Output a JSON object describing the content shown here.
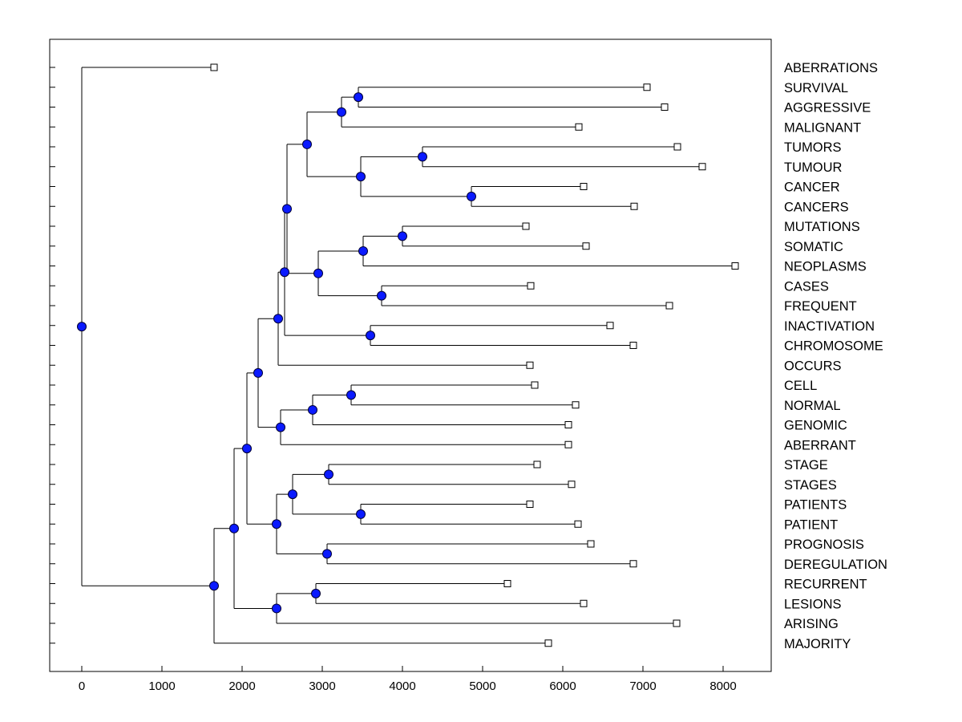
{
  "chart_data": {
    "type": "dendrogram",
    "title": "",
    "xlabel": "",
    "ylabel": "",
    "xlim": [
      -400,
      8600
    ],
    "xticks": [
      0,
      1000,
      2000,
      3000,
      4000,
      5000,
      6000,
      7000,
      8000
    ],
    "tick_labels": [
      "0",
      "1000",
      "2000",
      "3000",
      "4000",
      "5000",
      "6000",
      "7000",
      "8000"
    ],
    "leaves": [
      {
        "label": "ABERRATIONS",
        "value": 1650
      },
      {
        "label": "SURVIVAL",
        "value": 7050
      },
      {
        "label": "AGGRESSIVE",
        "value": 7270
      },
      {
        "label": "MALIGNANT",
        "value": 6200
      },
      {
        "label": "TUMORS",
        "value": 7430
      },
      {
        "label": "TUMOUR",
        "value": 7740
      },
      {
        "label": "CANCER",
        "value": 6260
      },
      {
        "label": "CANCERS",
        "value": 6890
      },
      {
        "label": "MUTATIONS",
        "value": 5540
      },
      {
        "label": "SOMATIC",
        "value": 6290
      },
      {
        "label": "NEOPLASMS",
        "value": 8150
      },
      {
        "label": "CASES",
        "value": 5600
      },
      {
        "label": "FREQUENT",
        "value": 7330
      },
      {
        "label": "INACTIVATION",
        "value": 6590
      },
      {
        "label": "CHROMOSOME",
        "value": 6880
      },
      {
        "label": "OCCURS",
        "value": 5590
      },
      {
        "label": "CELL",
        "value": 5650
      },
      {
        "label": "NORMAL",
        "value": 6160
      },
      {
        "label": "GENOMIC",
        "value": 6070
      },
      {
        "label": "ABERRANT",
        "value": 6070
      },
      {
        "label": "STAGE",
        "value": 5680
      },
      {
        "label": "STAGES",
        "value": 6110
      },
      {
        "label": "PATIENTS",
        "value": 5590
      },
      {
        "label": "PATIENT",
        "value": 6190
      },
      {
        "label": "PROGNOSIS",
        "value": 6350
      },
      {
        "label": "DEREGULATION",
        "value": 6880
      },
      {
        "label": "RECURRENT",
        "value": 5310
      },
      {
        "label": "LESIONS",
        "value": 6260
      },
      {
        "label": "ARISING",
        "value": 7420
      },
      {
        "label": "MAJORITY",
        "value": 5820
      }
    ],
    "nodes": [
      {
        "id": "n1",
        "value": 3450,
        "children": [
          "L1",
          "L2"
        ]
      },
      {
        "id": "n2",
        "value": 3240,
        "children": [
          "n1",
          "L3"
        ]
      },
      {
        "id": "n3",
        "value": 4250,
        "children": [
          "L4",
          "L5"
        ]
      },
      {
        "id": "n4",
        "value": 4860,
        "children": [
          "L6",
          "L7"
        ]
      },
      {
        "id": "n5",
        "value": 3480,
        "children": [
          "n3",
          "n4"
        ]
      },
      {
        "id": "n6",
        "value": 2810,
        "children": [
          "n2",
          "n5"
        ]
      },
      {
        "id": "n7",
        "value": 4000,
        "children": [
          "L8",
          "L9"
        ]
      },
      {
        "id": "n8",
        "value": 3510,
        "children": [
          "n7",
          "L10"
        ]
      },
      {
        "id": "n9",
        "value": 3740,
        "children": [
          "L11",
          "L12"
        ]
      },
      {
        "id": "n10",
        "value": 2950,
        "children": [
          "n8",
          "n9"
        ]
      },
      {
        "id": "n11",
        "value": 2560,
        "children": [
          "n6",
          "n10"
        ]
      },
      {
        "id": "n12",
        "value": 3600,
        "children": [
          "L13",
          "L14"
        ]
      },
      {
        "id": "n13",
        "value": 2530,
        "children": [
          "n11",
          "n12"
        ]
      },
      {
        "id": "n14",
        "value": 2450,
        "children": [
          "n13",
          "L15"
        ]
      },
      {
        "id": "n15",
        "value": 3360,
        "children": [
          "L16",
          "L17"
        ]
      },
      {
        "id": "n16",
        "value": 2880,
        "children": [
          "n15",
          "L18"
        ]
      },
      {
        "id": "n17",
        "value": 2480,
        "children": [
          "n16",
          "L19"
        ]
      },
      {
        "id": "n18",
        "value": 2200,
        "children": [
          "n14",
          "n17"
        ]
      },
      {
        "id": "n19",
        "value": 3080,
        "children": [
          "L20",
          "L21"
        ]
      },
      {
        "id": "n20",
        "value": 3480,
        "children": [
          "L22",
          "L23"
        ]
      },
      {
        "id": "n21",
        "value": 2630,
        "children": [
          "n19",
          "n20"
        ]
      },
      {
        "id": "n22",
        "value": 3060,
        "children": [
          "L24",
          "L25"
        ]
      },
      {
        "id": "n23",
        "value": 2430,
        "children": [
          "n21",
          "n22"
        ]
      },
      {
        "id": "n24",
        "value": 2060,
        "children": [
          "n18",
          "n23"
        ]
      },
      {
        "id": "n25",
        "value": 2920,
        "children": [
          "L26",
          "L27"
        ]
      },
      {
        "id": "n26",
        "value": 2430,
        "children": [
          "n25",
          "L28"
        ]
      },
      {
        "id": "n27",
        "value": 1900,
        "children": [
          "n24",
          "n26"
        ]
      },
      {
        "id": "n28",
        "value": 1650,
        "children": [
          "n27",
          "L29"
        ]
      },
      {
        "id": "root",
        "value": 0,
        "children": [
          "L0",
          "n28"
        ]
      }
    ],
    "colors": {
      "node_fill": "#0a1aff",
      "node_stroke": "#000033",
      "line": "#000000",
      "leaf_fill": "#ffffff",
      "axes": "#000000"
    }
  }
}
